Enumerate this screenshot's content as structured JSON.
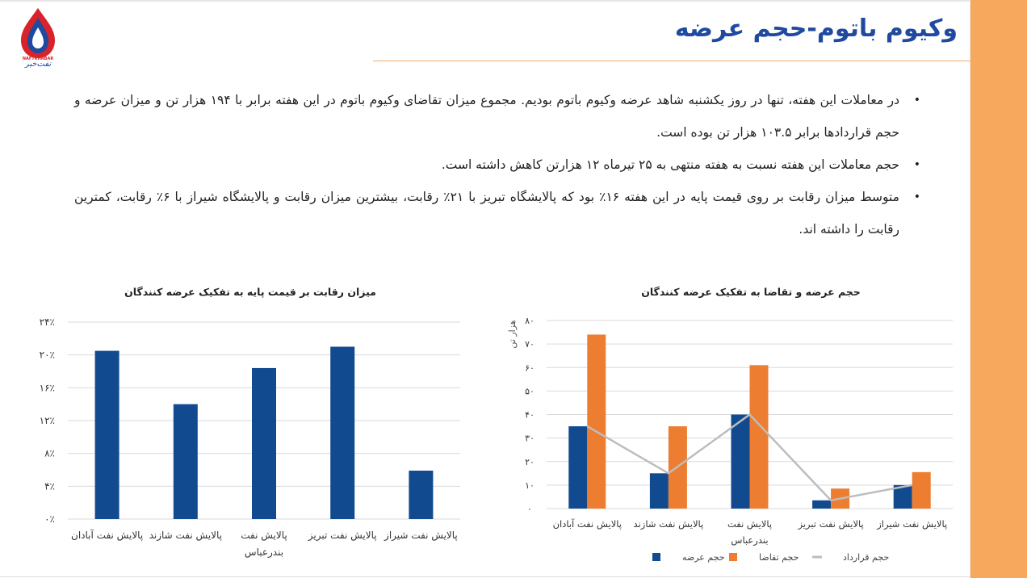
{
  "logo": {
    "brand_latin": "NAFTKHABAR",
    "brand_fa": "نفت‌خبر"
  },
  "header": {
    "title": "وکیوم باتوم-حجم عرضه"
  },
  "bullets": [
    "در معاملات این هفته، تنها در روز یکشنبه شاهد عرضه وکیوم باتوم بودیم. مجموع میزان تقاضای وکیوم باتوم در این هفته برابر با ۱۹۴ هزار تن و میزان عرضه و حجم قراردادها برابر ۱۰۳.۵ هزار تن بوده است.",
    "حجم معاملات این هفته نسبت به هفته منتهی به ۲۵ تیرماه ۱۲ هزارتن کاهش داشته است.",
    "متوسط میزان رقابت بر روی قیمت پایه در این هفته ۱۶٪ بود که پالایشگاه تبریز با ۲۱٪ رقابت، بیشترین میزان رقابت و پالایشگاه شیراز با ۶٪ رقابت، کمترین رقابت را داشته اند."
  ],
  "bullet_symbol": "•",
  "chart_data": [
    {
      "type": "bar",
      "title": "میزان رقابت بر قیمت پایه به تفکیک عرضه کنندگان",
      "categories": [
        "پالایش نفت آبادان",
        "پالایش نفت شازند",
        "پالایش نفت بندرعباس",
        "پالایش نفت تبریز",
        "پالایش نفت شیراز"
      ],
      "category_lines": [
        [
          "پالایش نفت آبادان"
        ],
        [
          "پالایش نفت شازند"
        ],
        [
          "پالایش نفت",
          "بندرعباس"
        ],
        [
          "پالایش نفت تبریز"
        ],
        [
          "پالایش نفت شیراز"
        ]
      ],
      "values": [
        20.5,
        14,
        18.4,
        21,
        5.9
      ],
      "ylim": [
        0,
        24
      ],
      "yticks": [
        0,
        4,
        8,
        12,
        16,
        20,
        24
      ],
      "ytick_labels": [
        "۰٪",
        "۴٪",
        "۸٪",
        "۱۲٪",
        "۱۶٪",
        "۲۰٪",
        "۲۴٪"
      ],
      "ylabel": "",
      "grid": true,
      "colors": {
        "bar": "#124a8f",
        "grid": "#d9d9d9"
      }
    },
    {
      "type": "bar",
      "title": "حجم عرضه و تقاضا به تفکیک عرضه کنندگان",
      "categories": [
        "پالایش نفت آبادان",
        "پالایش نفت شازند",
        "پالایش نفت بندرعباس",
        "پالایش نفت تبریز",
        "پالایش نفت شیراز"
      ],
      "category_lines": [
        [
          "پالایش نفت آبادان"
        ],
        [
          "پالایش نفت شازند"
        ],
        [
          "پالایش نفت",
          "بندرعباس"
        ],
        [
          "پالایش نفت تبریز"
        ],
        [
          "پالایش نفت شیراز"
        ]
      ],
      "series": [
        {
          "name": "حجم عرضه",
          "kind": "bar",
          "color": "#124a8f",
          "values": [
            35,
            15,
            40,
            3.5,
            10
          ]
        },
        {
          "name": "حجم تقاضا",
          "kind": "bar",
          "color": "#ed7d31",
          "values": [
            74,
            35,
            61,
            8.5,
            15.5
          ]
        },
        {
          "name": "حجم قرارداد",
          "kind": "line",
          "color": "#bdbdbd",
          "values": [
            35,
            15,
            40,
            3.5,
            10
          ]
        }
      ],
      "ylim": [
        0,
        80
      ],
      "yticks": [
        0,
        10,
        20,
        30,
        40,
        50,
        60,
        70,
        80
      ],
      "ytick_labels": [
        "۰",
        "۱۰",
        "۲۰",
        "۳۰",
        "۴۰",
        "۵۰",
        "۶۰",
        "۷۰",
        "۸۰"
      ],
      "ylabel": "هزار تن",
      "grid": true,
      "legend": "bottom",
      "colors": {
        "grid": "#d9d9d9"
      }
    }
  ]
}
